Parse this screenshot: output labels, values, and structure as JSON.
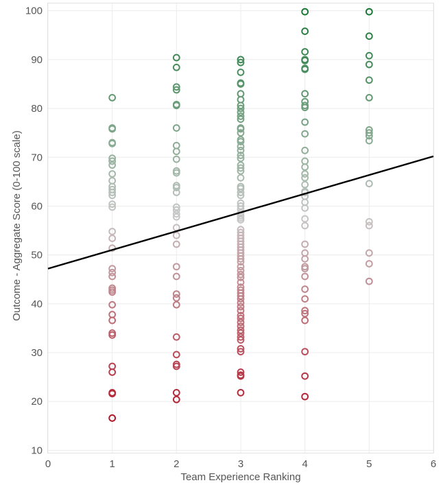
{
  "chart_data": {
    "type": "scatter",
    "title": "",
    "xlabel": "Team Experience Ranking",
    "ylabel": "Outcome - Aggregate Score (0-100 scale)",
    "xlim": [
      0,
      6
    ],
    "ylim": [
      9.5,
      101.5
    ],
    "x_ticks": [
      0,
      1,
      2,
      3,
      4,
      5,
      6
    ],
    "y_ticks": [
      10,
      20,
      30,
      40,
      50,
      60,
      70,
      80,
      90,
      100
    ],
    "grid": true,
    "color_scale": {
      "low_value": 17,
      "mid_value": 58,
      "high_value": 100,
      "low_color": "#b2182b",
      "mid_color": "#c8c8c8",
      "high_color": "#1b7837"
    },
    "trend_line": {
      "x": [
        0,
        6
      ],
      "y": [
        47.2,
        70.2
      ],
      "color": "#000000"
    },
    "series": [
      {
        "x": 1,
        "values": [
          82.2,
          76,
          75.8,
          73,
          72.8,
          69.8,
          69.2,
          68.4,
          66.6,
          65.2,
          64,
          63.4,
          62.8,
          62.2,
          60.4,
          59.8,
          54.8,
          53.4,
          51.4,
          47.2,
          46.4,
          45.6,
          43.2,
          42.8,
          42.4,
          39.8,
          37.8,
          36.6,
          34,
          33.6,
          27.2,
          26,
          21.8,
          21.6,
          16.6
        ]
      },
      {
        "x": 2,
        "values": [
          90.4,
          88.4,
          84.4,
          83.8,
          80.8,
          80.6,
          76,
          72.4,
          71.2,
          69.6,
          67.2,
          66.8,
          64.2,
          63.8,
          62.8,
          59.8,
          59.2,
          58.4,
          57.8,
          55.6,
          54,
          52.2,
          47.6,
          45.6,
          42,
          41.2,
          39.8,
          33.2,
          29.6,
          27.6,
          27.2,
          21.8,
          20.4
        ]
      },
      {
        "x": 3,
        "values": [
          90,
          89.4,
          87.4,
          85.2,
          85,
          83,
          81.8,
          80.6,
          80,
          79.2,
          78.4,
          77.8,
          76,
          75.8,
          75,
          73.6,
          73.2,
          72.2,
          71.4,
          70.4,
          69.8,
          68.4,
          67.8,
          67.2,
          65.8,
          64,
          63.6,
          62.8,
          62.2,
          60.6,
          60,
          59.4,
          58.6,
          58,
          57.6,
          57.2,
          55.2,
          54.6,
          54,
          53.4,
          52.8,
          52.2,
          51.6,
          51,
          50.4,
          49.8,
          49.2,
          48.6,
          47.6,
          46.8,
          46,
          45.4,
          44.4,
          43.4,
          42.8,
          42.2,
          41.6,
          41,
          40.2,
          39.4,
          38.6,
          37.6,
          37,
          36.2,
          35.4,
          34.6,
          34,
          33.2,
          32.6,
          30.8,
          30.2,
          26,
          25.4,
          25.2,
          21.8
        ]
      },
      {
        "x": 4,
        "values": [
          99.8,
          95.8,
          91.6,
          90,
          89.8,
          88.2,
          88,
          83,
          81.4,
          80.6,
          80.2,
          77.2,
          74.8,
          71.4,
          69.2,
          68,
          66.6,
          65.8,
          64.4,
          63,
          62.8,
          62,
          60.8,
          59.6,
          57.4,
          56,
          52.2,
          50.4,
          49.2,
          47.6,
          47.2,
          45.6,
          43,
          41,
          38.6,
          38,
          36.6,
          30.2,
          25.2,
          21
        ]
      },
      {
        "x": 5,
        "values": [
          99.8,
          94.8,
          90.8,
          89,
          85.8,
          82.2,
          75.6,
          75,
          74.4,
          73.4,
          64.6,
          56.8,
          56,
          50.4,
          48.2,
          44.6
        ]
      }
    ]
  }
}
